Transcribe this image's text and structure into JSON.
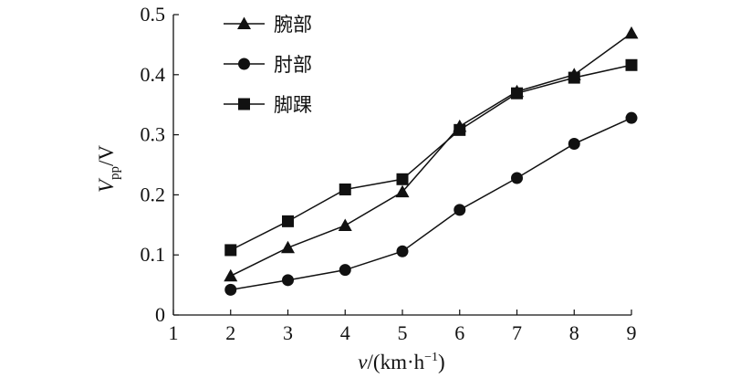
{
  "chart_data": {
    "type": "line",
    "x": [
      2,
      3,
      4,
      5,
      6,
      7,
      8,
      9
    ],
    "xlim": [
      1,
      9
    ],
    "ylim": [
      0,
      0.5
    ],
    "xticks": [
      "1",
      "2",
      "3",
      "4",
      "5",
      "6",
      "7",
      "8",
      "9"
    ],
    "yticks": [
      "0",
      "0.1",
      "0.2",
      "0.3",
      "0.4",
      "0.5"
    ],
    "xlabel": {
      "var": "v",
      "unit": "/(km·h",
      "sup": "−1",
      "close": ")"
    },
    "ylabel": {
      "var": "V",
      "sub": "pp",
      "unit": "/V"
    },
    "grid": false,
    "legend_position": "top-left",
    "series": [
      {
        "name": "腕部",
        "marker": "triangle",
        "values": [
          0.065,
          0.112,
          0.149,
          0.205,
          0.314,
          0.372,
          0.4,
          0.469
        ]
      },
      {
        "name": "肘部",
        "marker": "circle",
        "values": [
          0.042,
          0.058,
          0.075,
          0.106,
          0.175,
          0.228,
          0.285,
          0.328
        ]
      },
      {
        "name": "脚踝",
        "marker": "square",
        "values": [
          0.108,
          0.156,
          0.209,
          0.226,
          0.308,
          0.369,
          0.395,
          0.416
        ]
      }
    ],
    "colors": {
      "line": "#111111",
      "marker": "#111111"
    }
  }
}
